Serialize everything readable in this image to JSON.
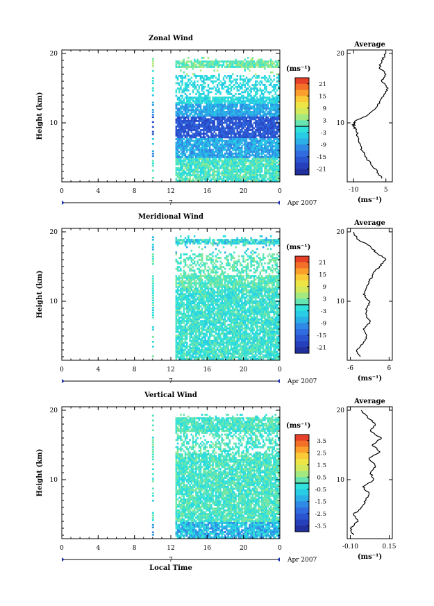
{
  "chart_data": [
    {
      "type": "heatmap",
      "title": "Zonal Wind",
      "ylabel": "Height (km)",
      "xlabel": "",
      "x_ticks": [
        "0",
        "4",
        "8",
        "12",
        "16",
        "20",
        "0"
      ],
      "y_ticks": [
        "20",
        "10"
      ],
      "xlim": [
        0,
        24
      ],
      "ylim": [
        1.5,
        20.5
      ],
      "day_label": "7",
      "date_label": "Apr 2007",
      "colorbar": {
        "unit": "(ms⁻¹)",
        "ticks": [
          "21",
          "15",
          "9",
          "3",
          "-3",
          "-9",
          "-15",
          "-21"
        ],
        "range": [
          -24,
          24
        ]
      },
      "profile": {
        "title": "Average",
        "x_ticks": [
          "-10",
          "5"
        ],
        "xlim": [
          -13,
          8
        ],
        "xunit": "(ms⁻¹)",
        "y_ticks": [
          "20",
          "10"
        ],
        "heights": [
          2,
          3,
          4,
          5,
          6,
          7,
          8,
          9,
          9.5,
          10,
          10.5,
          11,
          12,
          13,
          14,
          15,
          16,
          17,
          18,
          19,
          20
        ],
        "values": [
          3,
          1,
          -2,
          -4,
          -6,
          -7,
          -8,
          -9,
          -10,
          -10,
          -8,
          -4,
          0,
          2,
          4,
          6,
          3,
          5,
          2,
          3,
          5
        ]
      }
    },
    {
      "type": "heatmap",
      "title": "Meridional Wind",
      "ylabel": "Height (km)",
      "xlabel": "",
      "x_ticks": [
        "0",
        "4",
        "8",
        "12",
        "16",
        "20",
        "0"
      ],
      "y_ticks": [
        "20",
        "10"
      ],
      "xlim": [
        0,
        24
      ],
      "ylim": [
        1.5,
        20.5
      ],
      "day_label": "7",
      "date_label": "Apr 2007",
      "colorbar": {
        "unit": "(ms⁻¹)",
        "ticks": [
          "21",
          "15",
          "9",
          "3",
          "-3",
          "-9",
          "-15",
          "-21"
        ],
        "range": [
          -24,
          24
        ]
      },
      "profile": {
        "title": "Average",
        "x_ticks": [
          "-6",
          "6"
        ],
        "xlim": [
          -7,
          7
        ],
        "xunit": "(ms⁻¹)",
        "y_ticks": [
          "20",
          "10"
        ],
        "heights": [
          2,
          3,
          4,
          5,
          6,
          7,
          8,
          9,
          10,
          11,
          12,
          13,
          14,
          15,
          16,
          17,
          18,
          19,
          20
        ],
        "values": [
          -3,
          -4,
          -2,
          -1,
          -2,
          0,
          -1,
          -1,
          0,
          -2,
          -1,
          0,
          1,
          3,
          5,
          2,
          0,
          -4,
          -5
        ]
      }
    },
    {
      "type": "heatmap",
      "title": "Vertical Wind",
      "ylabel": "Height (km)",
      "xlabel": "Local Time",
      "x_ticks": [
        "0",
        "4",
        "8",
        "12",
        "16",
        "20",
        "0"
      ],
      "y_ticks": [
        "20",
        "10"
      ],
      "xlim": [
        0,
        24
      ],
      "ylim": [
        1.5,
        20.5
      ],
      "day_label": "7",
      "date_label": "Apr 2007",
      "colorbar": {
        "unit": "(ms⁻¹)",
        "ticks": [
          "3.5",
          "2.5",
          "1.5",
          "0.5",
          "-0.5",
          "-1.5",
          "-2.5",
          "-3.5"
        ],
        "range": [
          -4,
          4
        ]
      },
      "profile": {
        "title": "Average",
        "x_ticks": [
          "-0.10",
          "0.15"
        ],
        "xlim": [
          -0.12,
          0.17
        ],
        "xunit": "(ms⁻¹)",
        "y_ticks": [
          "20",
          "10"
        ],
        "heights": [
          2,
          3,
          4,
          5,
          6,
          7,
          8,
          9,
          10,
          11,
          12,
          13,
          14,
          15,
          16,
          17,
          18,
          19,
          20
        ],
        "values": [
          -0.08,
          -0.1,
          -0.05,
          -0.08,
          -0.03,
          0.0,
          0.02,
          -0.02,
          0.05,
          0.03,
          0.06,
          0.02,
          0.09,
          0.04,
          0.1,
          0.03,
          0.06,
          0.01,
          -0.03
        ]
      }
    }
  ]
}
